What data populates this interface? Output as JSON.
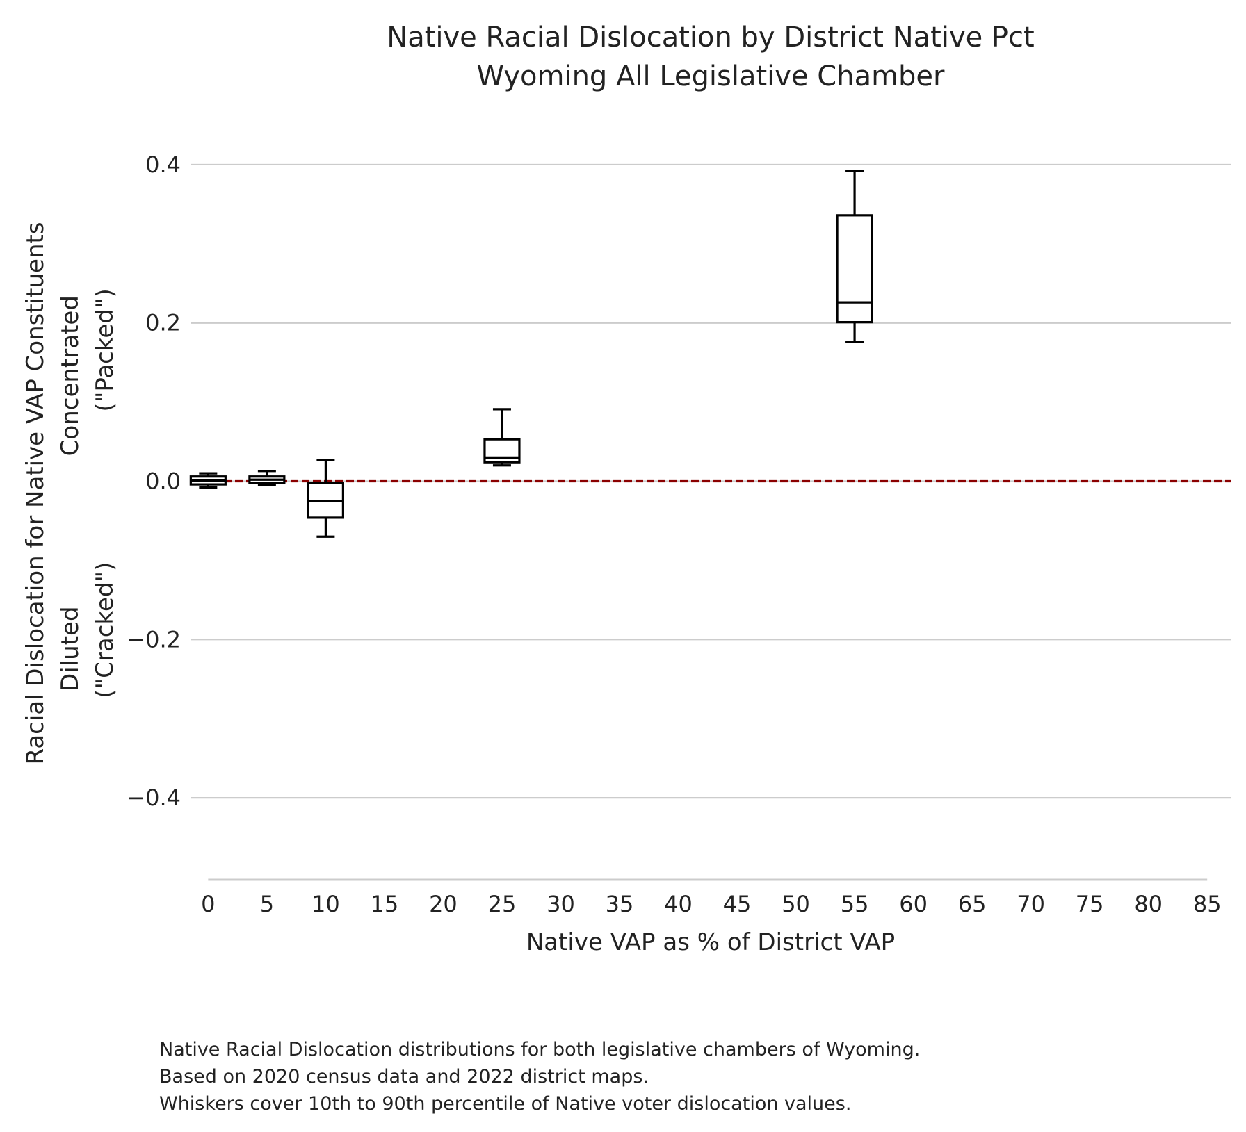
{
  "chart_data": {
    "type": "box",
    "title_lines": [
      "Native Racial Dislocation by District Native Pct",
      "Wyoming All Legislative Chamber"
    ],
    "xlabel": "Native VAP as % of District VAP",
    "ylabel_lines": [
      "Racial Dislocation for Native VAP Constituents",
      "Diluted                    Concentrated",
      "(\"Cracked\")                    (\"Packed\")"
    ],
    "xlim": [
      -1.5,
      87
    ],
    "ylim": [
      -0.5,
      0.45
    ],
    "x_ticks": [
      "0",
      "5",
      "10",
      "15",
      "20",
      "25",
      "30",
      "35",
      "40",
      "45",
      "50",
      "55",
      "60",
      "65",
      "70",
      "75",
      "80",
      "85"
    ],
    "y_ticks": [
      "0.4",
      "0.2",
      "0.0",
      "−0.2",
      "−0.4"
    ],
    "y_tick_values": [
      0.4,
      0.2,
      0.0,
      -0.2,
      -0.4
    ],
    "reference_line": {
      "y": 0.0,
      "color": "#8b0000",
      "style": "dashed"
    },
    "grid": "horizontal",
    "boxes": [
      {
        "x": 0,
        "whislo": -0.008,
        "q1": -0.004,
        "med": 0.001,
        "q3": 0.006,
        "whishi": 0.01
      },
      {
        "x": 5,
        "whislo": -0.005,
        "q1": -0.002,
        "med": 0.002,
        "q3": 0.006,
        "whishi": 0.013
      },
      {
        "x": 10,
        "whislo": -0.07,
        "q1": -0.046,
        "med": -0.025,
        "q3": -0.002,
        "whishi": 0.027
      },
      {
        "x": 25,
        "whislo": 0.02,
        "q1": 0.024,
        "med": 0.03,
        "q3": 0.053,
        "whishi": 0.091
      },
      {
        "x": 55,
        "whislo": 0.176,
        "q1": 0.201,
        "med": 0.226,
        "q3": 0.336,
        "whishi": 0.392
      }
    ]
  },
  "caption_lines": [
    "Native Racial Dislocation distributions for both legislative chambers of Wyoming.",
    "Based on 2020 census data and 2022 district maps.",
    "Whiskers cover 10th to 90th percentile of Native voter dislocation values."
  ]
}
